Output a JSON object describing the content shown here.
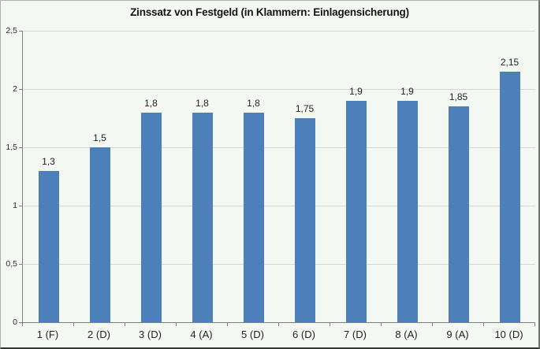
{
  "chart": {
    "title": "Zinssatz von Festgeld (in Klammern: Einlagensicherung)",
    "background_color": "#f3f8f3",
    "bar_color": "#4d7fba",
    "gridline_color": "#d6d6d6",
    "axis_color": "#7f7f7f"
  },
  "chart_data": {
    "type": "bar",
    "title": "Zinssatz von Festgeld (in Klammern: Einlagensicherung)",
    "categories": [
      "1 (F)",
      "2 (D)",
      "3 (D)",
      "4 (A)",
      "5 (D)",
      "6 (D)",
      "7 (D)",
      "8 (A)",
      "9 (A)",
      "10 (D)"
    ],
    "values": [
      1.3,
      1.5,
      1.8,
      1.8,
      1.8,
      1.75,
      1.9,
      1.9,
      1.85,
      2.15
    ],
    "value_labels": [
      "1,3",
      "1,5",
      "1,8",
      "1,8",
      "1,8",
      "1,75",
      "1,9",
      "1,9",
      "1,85",
      "2,15"
    ],
    "xlabel": "",
    "ylabel": "",
    "ylim": [
      0,
      2.5
    ],
    "y_tick_values": [
      0,
      0.5,
      1,
      1.5,
      2,
      2.5
    ],
    "y_tick_labels": [
      "0",
      "0,5",
      "1",
      "1,5",
      "2",
      "2,5"
    ],
    "grid": true,
    "legend": false,
    "legend_position": "none",
    "bar_color": "#4d7fba"
  }
}
